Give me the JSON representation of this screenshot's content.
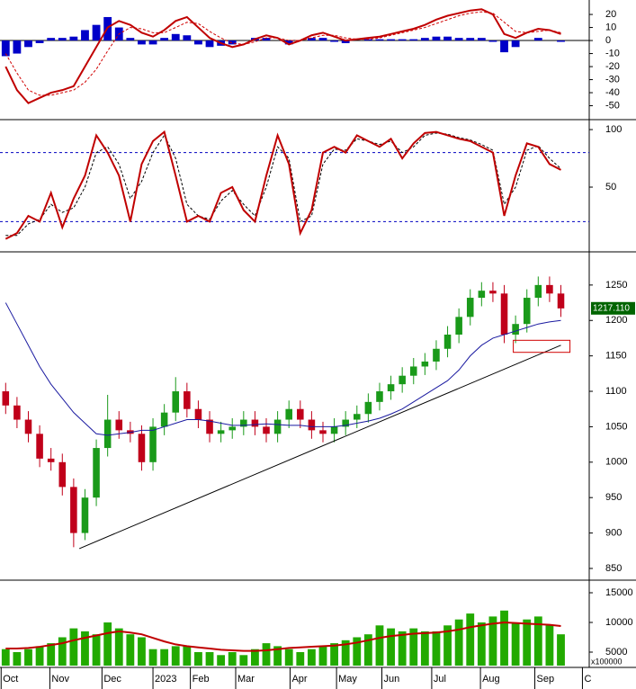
{
  "chart_data": [
    {
      "type": "line",
      "x": [
        0,
        1,
        2,
        3,
        4,
        5,
        6,
        7,
        8,
        9,
        10,
        11,
        12,
        13,
        14,
        15,
        16,
        17,
        18,
        19,
        20,
        21,
        22,
        23,
        24,
        25,
        26,
        27,
        28,
        29,
        30,
        31,
        32,
        33,
        34,
        35,
        36,
        37,
        38,
        39,
        40,
        41,
        42,
        43,
        44,
        45,
        46,
        47,
        48,
        49
      ],
      "xlim": [
        -0.5,
        51.5
      ],
      "ylim": [
        -58.6,
        29.7
      ],
      "yticks": [
        20,
        10,
        0,
        -10,
        -20,
        -30,
        -40,
        -50
      ],
      "zero_line": 0,
      "series": [
        {
          "kind": "bar",
          "color": "#0000c8",
          "values": [
            -12,
            -10,
            -5,
            -2,
            2,
            2,
            3,
            8,
            12,
            18,
            10,
            2,
            -3,
            -3,
            2,
            5,
            4,
            -3,
            -5,
            -4,
            -3,
            0,
            2,
            2,
            0,
            -3,
            0,
            2,
            2,
            -1,
            -2,
            0,
            1,
            1,
            1,
            1,
            1,
            2,
            3,
            3,
            2,
            2,
            2,
            -1,
            -9,
            -5,
            0,
            2,
            0,
            -1
          ]
        },
        {
          "kind": "line",
          "style": "dashed",
          "color": "#d00000",
          "values": [
            -10,
            -25,
            -38,
            -42,
            -42,
            -40,
            -38,
            -32,
            -22,
            -8,
            5,
            10,
            9,
            6,
            6,
            10,
            14,
            13,
            7,
            2,
            -2,
            -3,
            -1,
            2,
            2,
            0,
            0,
            2,
            4,
            4,
            2,
            1,
            1,
            2,
            4,
            6,
            8,
            10,
            13,
            16,
            19,
            21,
            22,
            21,
            14,
            7,
            6,
            7,
            8,
            6
          ]
        },
        {
          "kind": "line",
          "style": "solid",
          "color": "#c00000",
          "values": [
            -20,
            -38,
            -48,
            -44,
            -40,
            -38,
            -35,
            -20,
            -5,
            10,
            15,
            12,
            6,
            3,
            8,
            15,
            18,
            10,
            2,
            -2,
            -5,
            -3,
            1,
            4,
            2,
            -3,
            0,
            4,
            6,
            3,
            0,
            1,
            2,
            3,
            5,
            7,
            9,
            12,
            16,
            19,
            21,
            23,
            24,
            20,
            5,
            2,
            6,
            9,
            8,
            5
          ]
        }
      ]
    },
    {
      "type": "line",
      "x": [
        0,
        1,
        2,
        3,
        4,
        5,
        6,
        7,
        8,
        9,
        10,
        11,
        12,
        13,
        14,
        15,
        16,
        17,
        18,
        19,
        20,
        21,
        22,
        23,
        24,
        25,
        26,
        27,
        28,
        29,
        30,
        31,
        32,
        33,
        34,
        35,
        36,
        37,
        38,
        39,
        40,
        41,
        42,
        43,
        44,
        45,
        46,
        47,
        48,
        49
      ],
      "xlim": [
        -0.5,
        51.5
      ],
      "ylim": [
        -4.7,
        106.3
      ],
      "yticks": [
        50,
        100
      ],
      "ref_lines": [
        20,
        80
      ],
      "series": [
        {
          "kind": "line",
          "style": "dashed",
          "color": "#000000",
          "values": [
            8,
            8,
            18,
            22,
            35,
            28,
            32,
            50,
            80,
            85,
            70,
            40,
            55,
            80,
            95,
            75,
            35,
            25,
            22,
            38,
            47,
            35,
            25,
            50,
            85,
            75,
            20,
            25,
            70,
            83,
            82,
            92,
            90,
            87,
            90,
            80,
            85,
            95,
            97,
            96,
            93,
            91,
            87,
            82,
            35,
            50,
            82,
            86,
            75,
            66
          ]
        },
        {
          "kind": "line",
          "style": "solid",
          "color": "#c00000",
          "values": [
            5,
            10,
            25,
            20,
            45,
            15,
            40,
            60,
            95,
            80,
            60,
            20,
            70,
            90,
            98,
            60,
            20,
            25,
            20,
            45,
            50,
            30,
            20,
            60,
            95,
            70,
            10,
            30,
            80,
            85,
            80,
            95,
            90,
            85,
            92,
            75,
            88,
            97,
            98,
            95,
            92,
            90,
            85,
            80,
            25,
            60,
            88,
            85,
            70,
            65
          ]
        }
      ]
    },
    {
      "type": "candlestick",
      "x": [
        0,
        1,
        2,
        3,
        4,
        5,
        6,
        7,
        8,
        9,
        10,
        11,
        12,
        13,
        14,
        15,
        16,
        17,
        18,
        19,
        20,
        21,
        22,
        23,
        24,
        25,
        26,
        27,
        28,
        29,
        30,
        31,
        32,
        33,
        34,
        35,
        36,
        37,
        38,
        39,
        40,
        41,
        42,
        43,
        44,
        45,
        46,
        47,
        48,
        49
      ],
      "xlim": [
        -0.5,
        51.5
      ],
      "ylim": [
        836,
        1293
      ],
      "yticks": [
        850,
        900,
        950,
        1000,
        1050,
        1100,
        1150,
        1200,
        1250
      ],
      "up_color": "#1a9a1a",
      "down_color": "#c0001a",
      "open": [
        1100,
        1080,
        1060,
        1040,
        1005,
        1000,
        965,
        900,
        950,
        1020,
        1060,
        1045,
        1040,
        1000,
        1050,
        1070,
        1100,
        1075,
        1060,
        1040,
        1045,
        1050,
        1060,
        1050,
        1040,
        1060,
        1075,
        1060,
        1045,
        1040,
        1050,
        1060,
        1068,
        1085,
        1100,
        1110,
        1122,
        1135,
        1142,
        1160,
        1180,
        1205,
        1232,
        1242,
        1238,
        1180,
        1195,
        1232,
        1250,
        1238
      ],
      "high": [
        1112,
        1092,
        1072,
        1052,
        1020,
        1012,
        977,
        962,
        1032,
        1095,
        1072,
        1057,
        1052,
        1062,
        1082,
        1120,
        1112,
        1087,
        1072,
        1057,
        1062,
        1072,
        1072,
        1062,
        1072,
        1087,
        1087,
        1072,
        1057,
        1062,
        1072,
        1080,
        1097,
        1112,
        1122,
        1134,
        1147,
        1154,
        1172,
        1192,
        1217,
        1244,
        1254,
        1254,
        1250,
        1207,
        1244,
        1262,
        1262,
        1250
      ],
      "low": [
        1068,
        1048,
        1028,
        993,
        988,
        953,
        880,
        890,
        938,
        1008,
        1033,
        1028,
        988,
        988,
        1038,
        1058,
        1063,
        1048,
        1028,
        1028,
        1033,
        1038,
        1038,
        1028,
        1028,
        1048,
        1048,
        1033,
        1028,
        1028,
        1038,
        1048,
        1056,
        1073,
        1088,
        1098,
        1110,
        1123,
        1130,
        1148,
        1168,
        1193,
        1220,
        1226,
        1168,
        1168,
        1183,
        1220,
        1226,
        1205
      ],
      "close": [
        1080,
        1060,
        1040,
        1005,
        1000,
        965,
        900,
        950,
        1020,
        1060,
        1045,
        1040,
        1000,
        1050,
        1070,
        1100,
        1075,
        1060,
        1040,
        1045,
        1050,
        1060,
        1050,
        1040,
        1060,
        1075,
        1060,
        1045,
        1040,
        1050,
        1060,
        1068,
        1085,
        1100,
        1110,
        1122,
        1135,
        1142,
        1160,
        1180,
        1205,
        1232,
        1242,
        1238,
        1180,
        1195,
        1232,
        1250,
        1238,
        1217
      ],
      "moving_average": {
        "color": "#1a1aa0",
        "values": [
          1225,
          1195,
          1165,
          1135,
          1110,
          1090,
          1070,
          1055,
          1040,
          1038,
          1040,
          1042,
          1045,
          1045,
          1050,
          1055,
          1060,
          1060,
          1058,
          1055,
          1052,
          1052,
          1053,
          1054,
          1053,
          1052,
          1052,
          1050,
          1050,
          1050,
          1052,
          1055,
          1058,
          1062,
          1068,
          1075,
          1085,
          1095,
          1105,
          1115,
          1130,
          1150,
          1165,
          1175,
          1180,
          1185,
          1190,
          1195,
          1198,
          1200
        ]
      },
      "trendline": {
        "color": "#000000",
        "x": [
          6.5,
          49
        ],
        "y": [
          878,
          1165
        ]
      },
      "highlight": {
        "color": "#d00000",
        "x": [
          44.8,
          49.8
        ],
        "y": [
          1155,
          1172
        ]
      },
      "last_price": {
        "value": 1217.11,
        "label": "1217.110"
      }
    },
    {
      "type": "bar",
      "x": [
        0,
        1,
        2,
        3,
        4,
        5,
        6,
        7,
        8,
        9,
        10,
        11,
        12,
        13,
        14,
        15,
        16,
        17,
        18,
        19,
        20,
        21,
        22,
        23,
        24,
        25,
        26,
        27,
        28,
        29,
        30,
        31,
        32,
        33,
        34,
        35,
        36,
        37,
        38,
        39,
        40,
        41,
        42,
        43,
        44,
        45,
        46,
        47,
        48,
        49
      ],
      "xlim": [
        -0.5,
        51.5
      ],
      "ylim": [
        2727,
        16818
      ],
      "yticks": [
        5000,
        10000,
        15000
      ],
      "color": "#22aa00",
      "unit_label": "x100000",
      "values": [
        5500,
        5000,
        5500,
        6000,
        6500,
        7500,
        9000,
        8500,
        8000,
        10000,
        9000,
        8000,
        7500,
        5500,
        5500,
        6000,
        6000,
        5000,
        5000,
        4500,
        5000,
        4500,
        5500,
        6500,
        6000,
        5500,
        5000,
        5500,
        6000,
        6500,
        7000,
        7500,
        8000,
        9500,
        9000,
        8500,
        9000,
        8500,
        8500,
        9500,
        10500,
        11500,
        10000,
        11000,
        12000,
        10000,
        10500,
        11000,
        9500,
        8000
      ],
      "moving_average": {
        "color": "#c00000",
        "values": [
          5600,
          5600,
          5700,
          5900,
          6200,
          6500,
          7000,
          7400,
          7800,
          8200,
          8500,
          8300,
          8000,
          7400,
          6800,
          6300,
          6000,
          5800,
          5600,
          5400,
          5300,
          5200,
          5200,
          5300,
          5500,
          5700,
          5800,
          5900,
          6000,
          6100,
          6300,
          6600,
          7000,
          7400,
          7700,
          7900,
          8100,
          8200,
          8300,
          8500,
          8800,
          9200,
          9500,
          9800,
          10000,
          9900,
          9800,
          9700,
          9600,
          9400
        ]
      },
      "xticks": [
        {
          "value": -0.4,
          "label": "Oct"
        },
        {
          "value": 3.9,
          "label": "Nov"
        },
        {
          "value": 8.5,
          "label": "Dec"
        },
        {
          "value": 13.0,
          "label": "2023"
        },
        {
          "value": 16.3,
          "label": "Feb"
        },
        {
          "value": 20.3,
          "label": "Mar"
        },
        {
          "value": 25.1,
          "label": "Apr"
        },
        {
          "value": 29.2,
          "label": "May"
        },
        {
          "value": 33.2,
          "label": "Jun"
        },
        {
          "value": 37.6,
          "label": "Jul"
        },
        {
          "value": 41.9,
          "label": "Aug"
        },
        {
          "value": 46.7,
          "label": "Sep"
        },
        {
          "value": 50.9,
          "label": "C"
        }
      ]
    }
  ]
}
